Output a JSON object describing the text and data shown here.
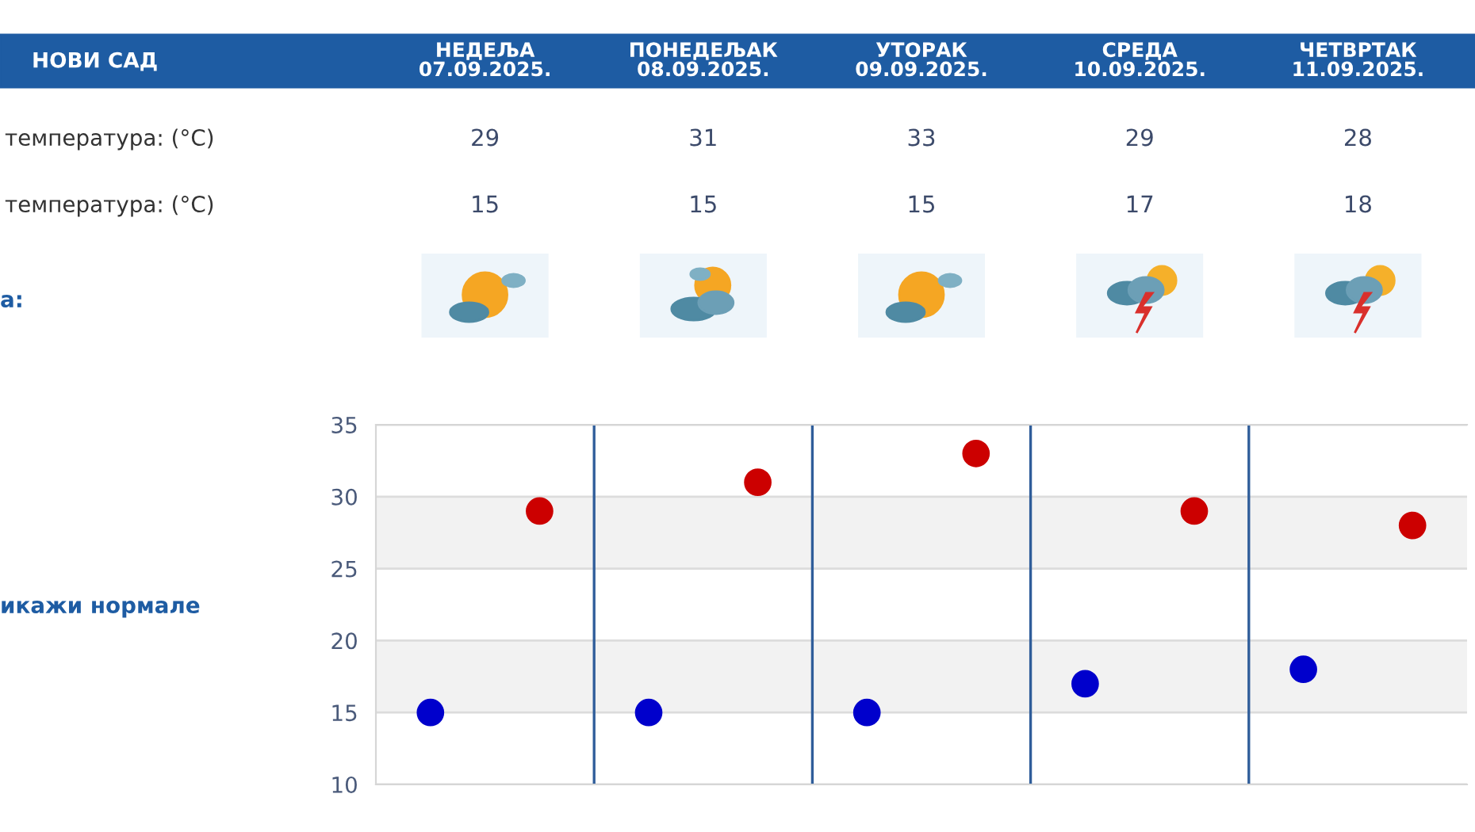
{
  "chart_data": {
    "type": "scatter",
    "title": "НОВИ САД",
    "categories": [
      null,
      null,
      null,
      null,
      null
    ],
    "series": [
      {
        "color": "#cc0000",
        "values": [
          29,
          31,
          33,
          29,
          28
        ]
      },
      {
        "color": "#0000cc",
        "values": [
          15,
          15,
          15,
          17,
          18
        ]
      }
    ],
    "ylim": [
      10,
      35
    ],
    "yticks": [
      10,
      15,
      20,
      25,
      30,
      35
    ],
    "grid": true,
    "marker": "circle",
    "data_labels": true,
    "bands": [
      {
        "axis": "y",
        "from": 15,
        "to": 20,
        "color": "#f2f2f2"
      },
      {
        "axis": "y",
        "from": 25,
        "to": 30,
        "color": "#f2f2f2"
      }
    ],
    "annotations": [
      "НЕДЕЉА\n07.09.2025.",
      "ПОНЕДЕЉАК\n08.09.2025.",
      "УТОРАК\n09.09.2025.",
      "СРЕДА\n10.09.2025.",
      "ЧЕТВРТАК\n11.09.2025.",
      "температура: (°C)",
      "температура: (°C)",
      "а:",
      "икажи нормале"
    ]
  }
}
